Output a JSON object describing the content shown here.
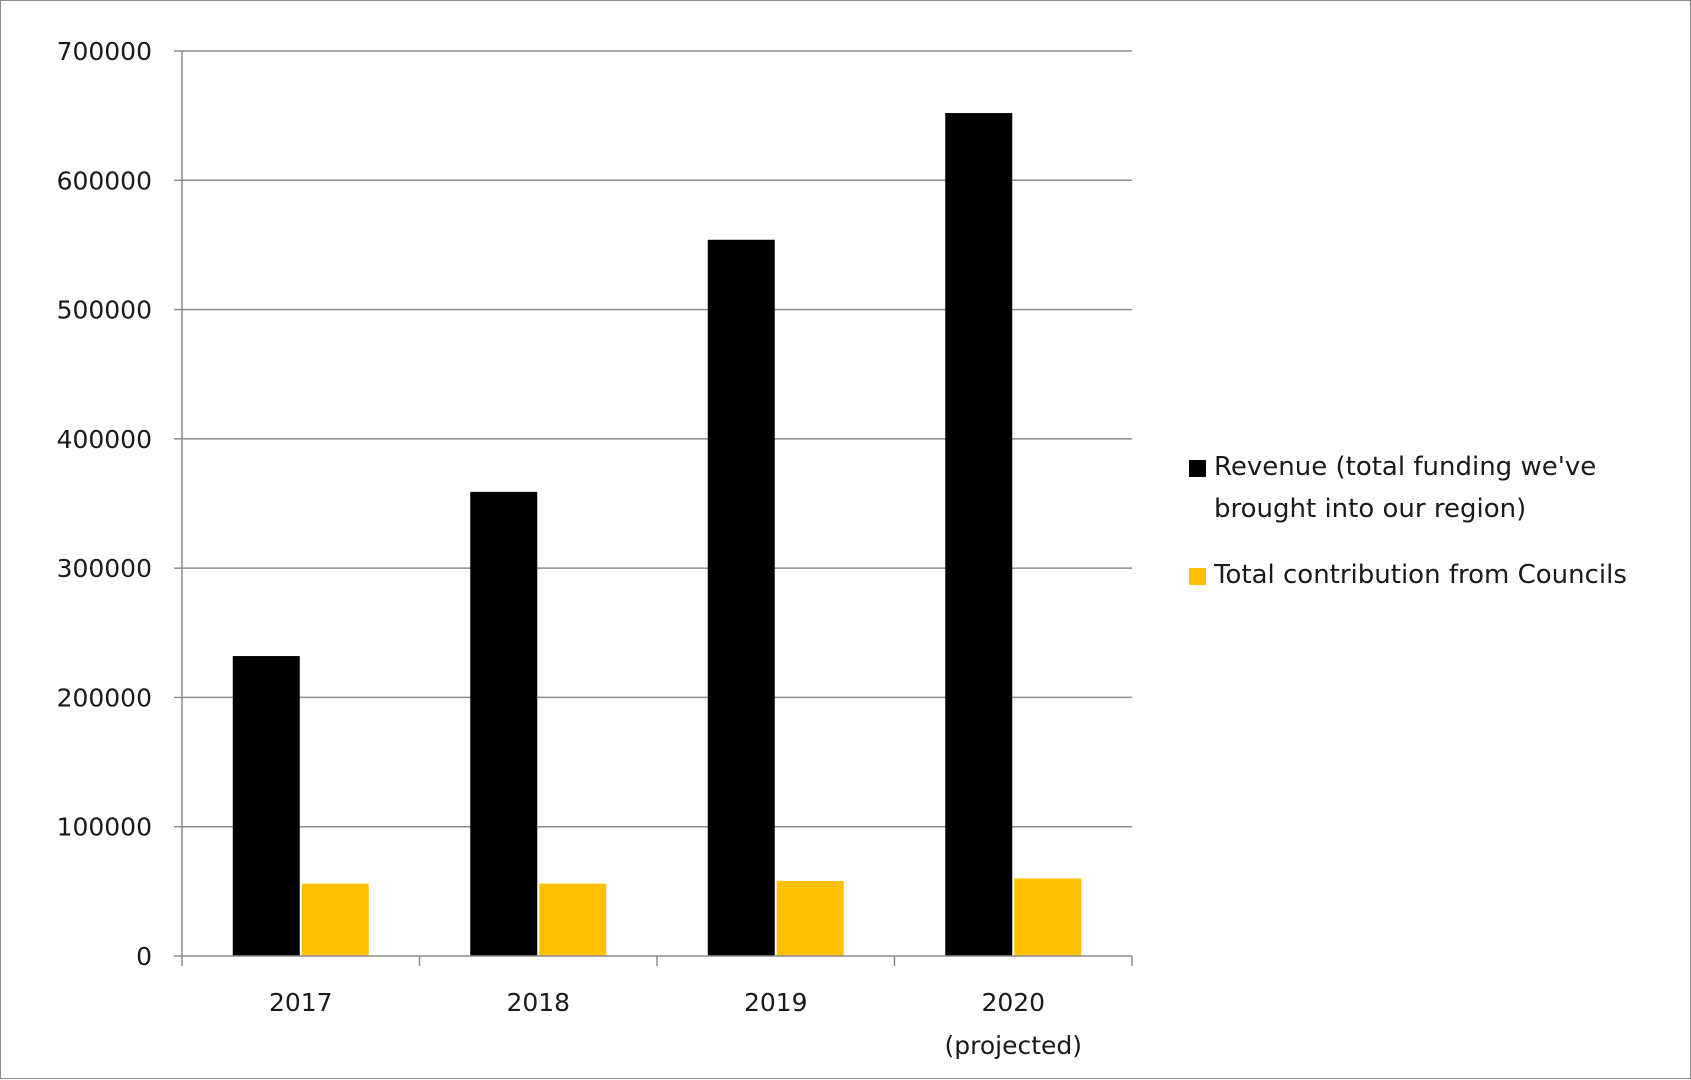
{
  "chart_data": {
    "type": "bar",
    "categories": [
      "2017",
      "2018",
      "2019",
      "2020\n(projected)"
    ],
    "series": [
      {
        "name": "Revenue (total funding we've brought into our region)",
        "values": [
          232000,
          359000,
          554000,
          652000
        ],
        "color": "#000000"
      },
      {
        "name": "Total contribution from Councils",
        "values": [
          56000,
          56000,
          58000,
          60000
        ],
        "color": "#ffc000"
      }
    ],
    "title": "",
    "xlabel": "",
    "ylabel": "",
    "ylim": [
      0,
      700000
    ],
    "yticks": [
      0,
      100000,
      200000,
      300000,
      400000,
      500000,
      600000,
      700000
    ],
    "grid": true,
    "legend_position": "right",
    "grid_color": "#8c8c8c"
  }
}
